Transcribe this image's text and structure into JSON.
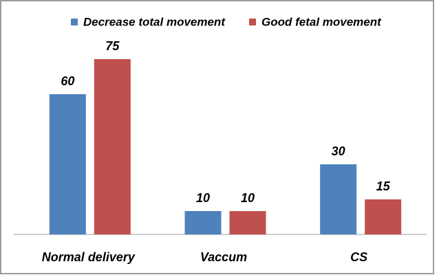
{
  "chart_data": {
    "type": "bar",
    "categories": [
      "Normal delivery",
      "Vaccum",
      "CS"
    ],
    "series": [
      {
        "name": "Decrease total movement",
        "color": "#4f81bd",
        "values": [
          60,
          10,
          30
        ]
      },
      {
        "name": "Good fetal movement",
        "color": "#c0504d",
        "values": [
          75,
          10,
          15
        ]
      }
    ],
    "ylim": [
      0,
      90
    ],
    "legend": "top"
  }
}
